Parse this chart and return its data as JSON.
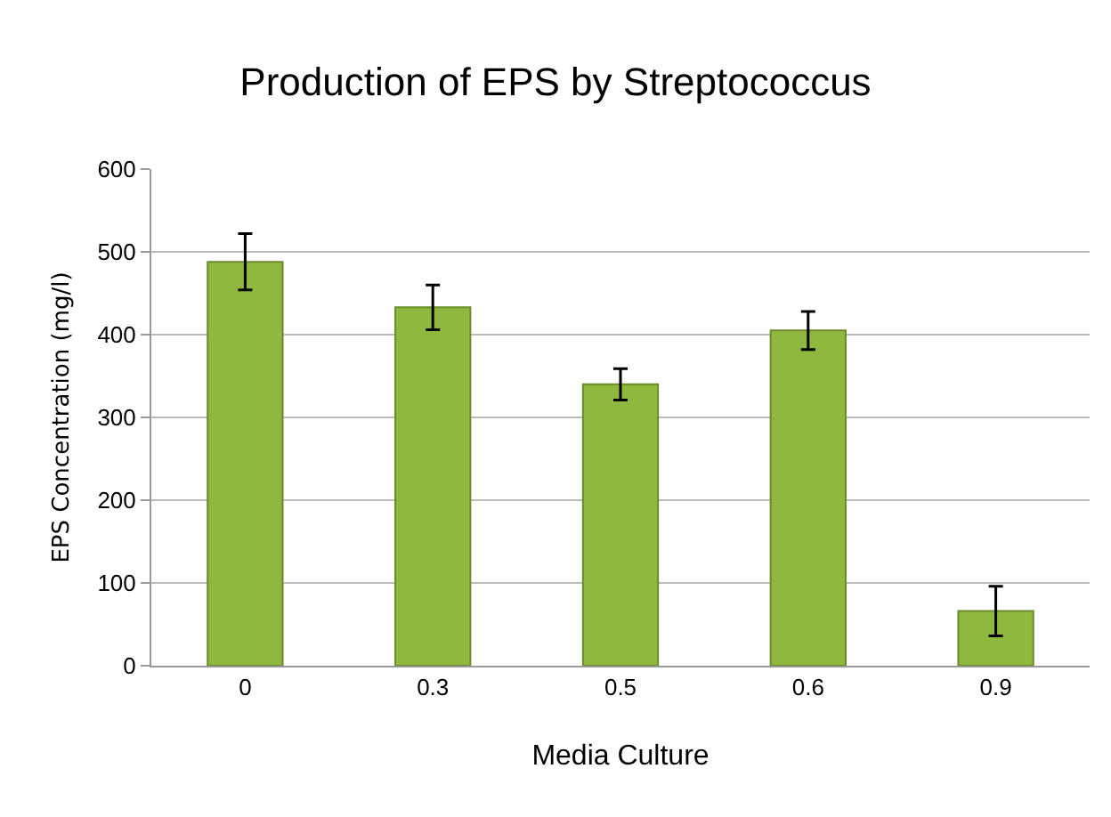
{
  "chart_data": {
    "type": "bar",
    "title": "Production of EPS by Streptococcus",
    "xlabel": "Media Culture",
    "ylabel": "EPS Concentration (mg/l)",
    "categories": [
      "0",
      "0.3",
      "0.5",
      "0.6",
      "0.9"
    ],
    "values": [
      488,
      433,
      340,
      405,
      66
    ],
    "errors": [
      34,
      27,
      19,
      23,
      30
    ],
    "color": "#8fb83e",
    "ylim": [
      0,
      600
    ],
    "yticks": [
      0,
      100,
      200,
      300,
      400,
      500,
      600
    ],
    "grid": "y"
  }
}
